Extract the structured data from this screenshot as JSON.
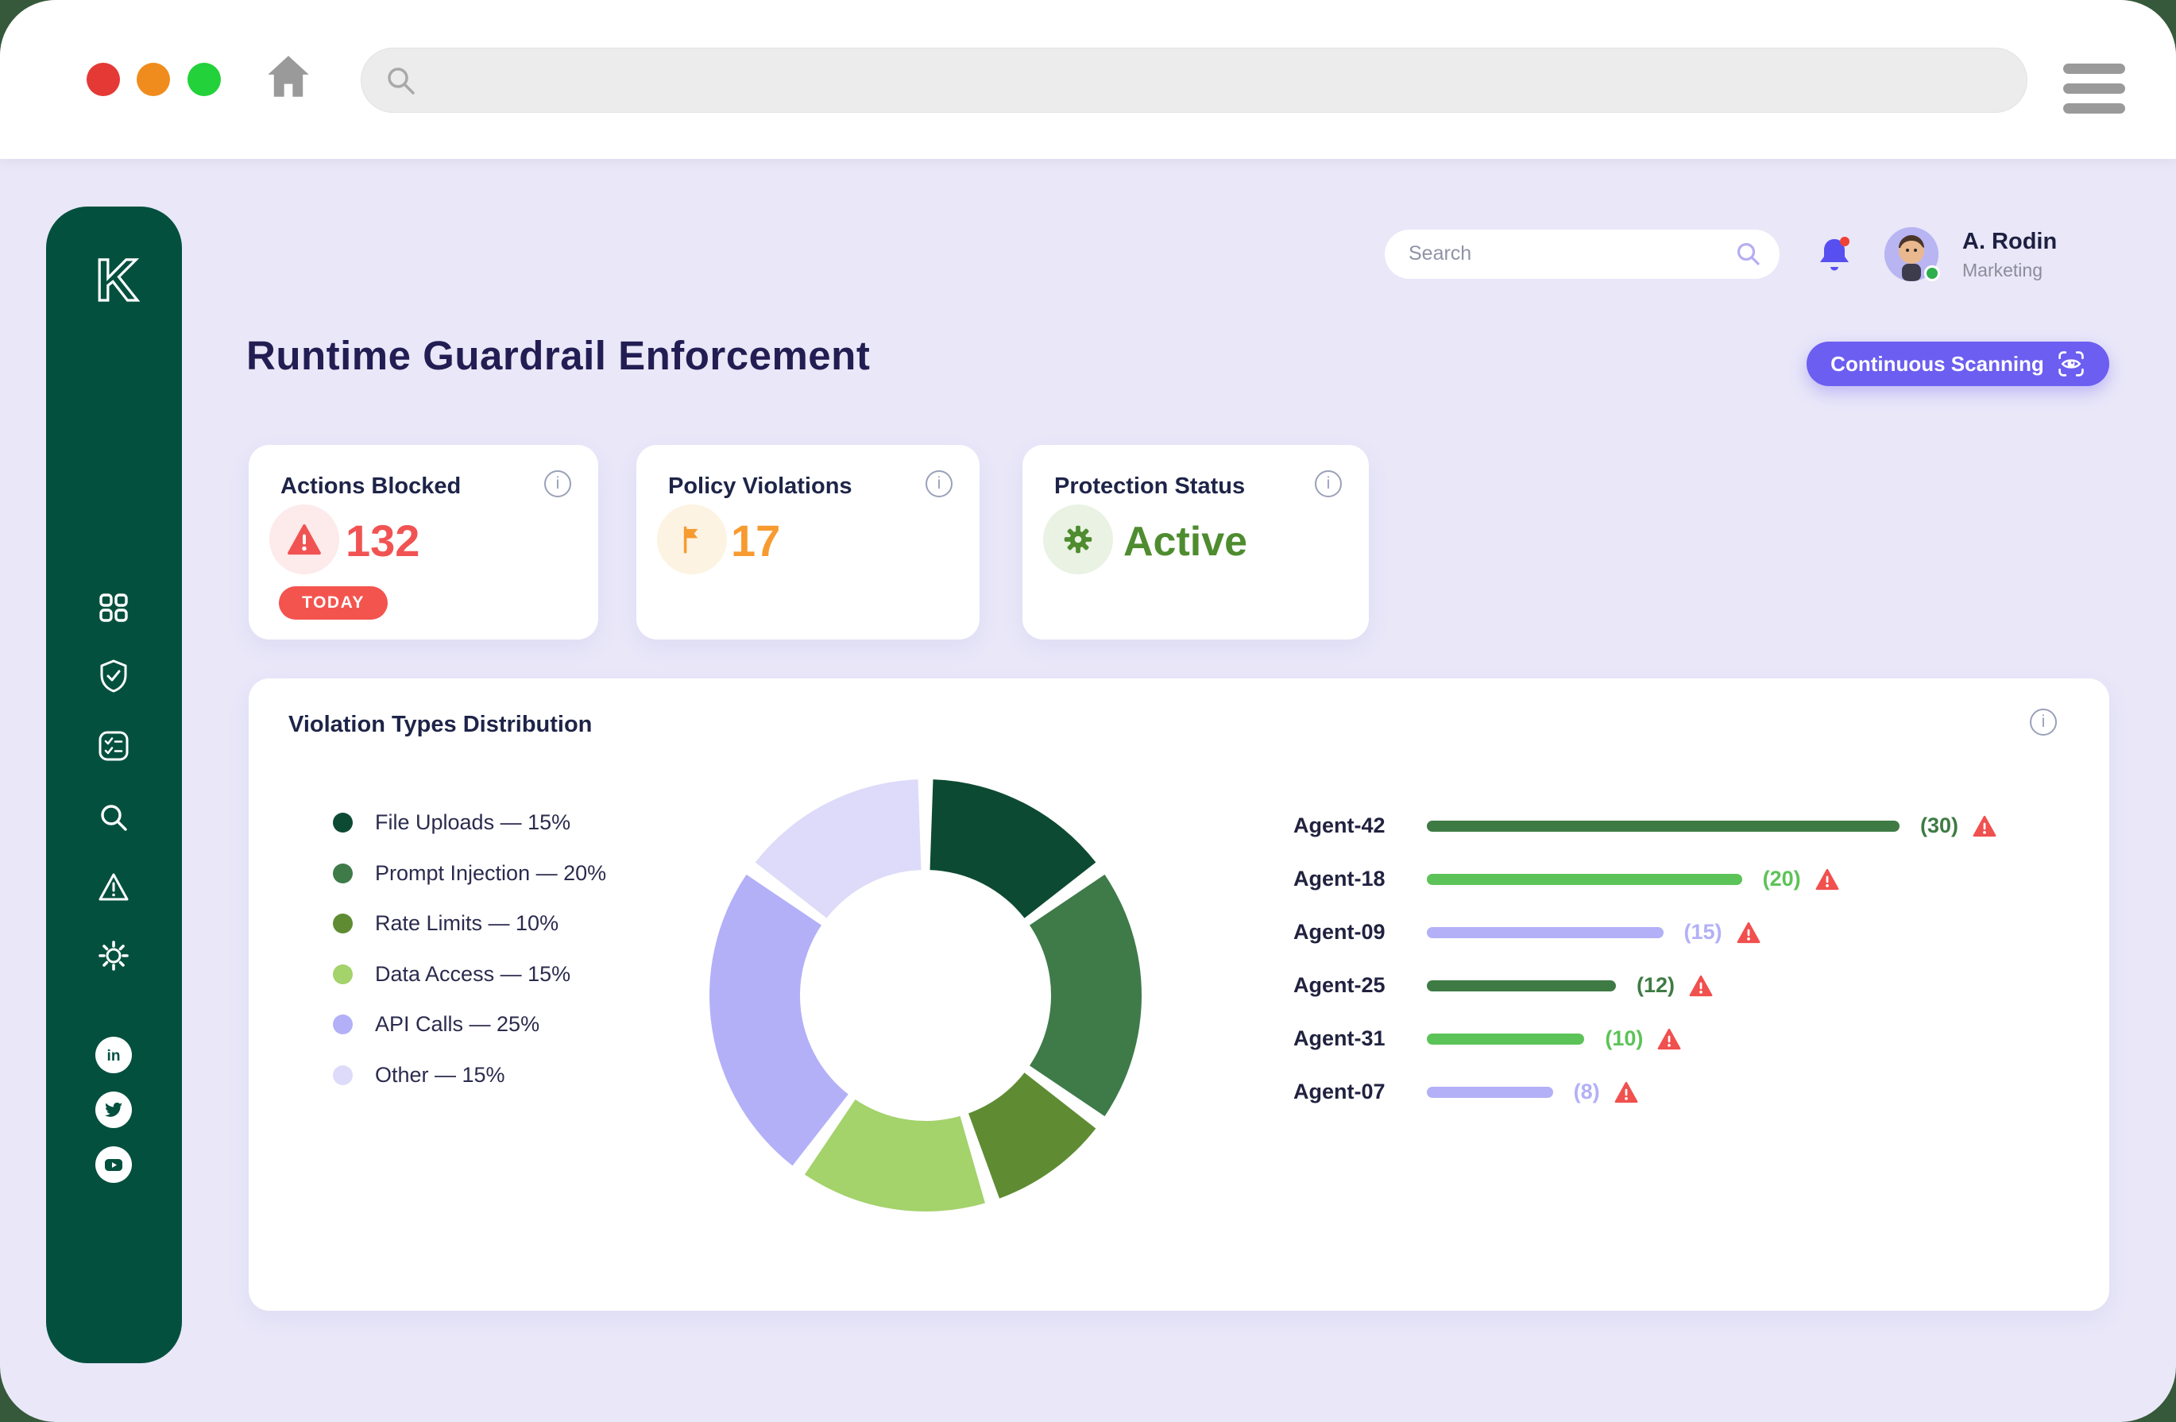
{
  "browser_chrome": {
    "search_value": "",
    "traffic_lights": [
      "close",
      "minimize",
      "maximize"
    ]
  },
  "sidebar": {
    "brand": "K",
    "nav_icons": [
      "dashboard-grid",
      "shield-check",
      "policy-checklist",
      "search",
      "alerts-warning",
      "settings-gear"
    ],
    "social_icons": [
      "linkedin",
      "twitter",
      "youtube"
    ],
    "color": "#04503f"
  },
  "header": {
    "search_placeholder": "Search",
    "user": {
      "name": "A. Rodin",
      "role": "Marketing"
    }
  },
  "page": {
    "title": "Runtime Guardrail Enforcement",
    "scan_button_label": "Continuous Scanning"
  },
  "stat_cards": [
    {
      "title": "Actions Blocked",
      "value": "132",
      "badge": "TODAY",
      "accent": "#f15353"
    },
    {
      "title": "Policy Violations",
      "value": "17",
      "accent": "#f79b31"
    },
    {
      "title": "Protection Status",
      "value": "Active",
      "accent": "#4e8c2f"
    }
  ],
  "distribution_card": {
    "title": "Violation Types Distribution"
  },
  "chart_data": [
    {
      "type": "pie",
      "donut": true,
      "title": "Violation Types Distribution",
      "labels": [
        "File Uploads",
        "Prompt Injection",
        "Rate Limits",
        "Data Access",
        "API Calls",
        "Other"
      ],
      "values": [
        15,
        20,
        10,
        15,
        25,
        15
      ],
      "unit": "%",
      "colors": [
        "#0d4a33",
        "#3e7b49",
        "#5f8c33",
        "#a4d26b",
        "#b3b0f8",
        "#dddbf9"
      ],
      "legend_position": "left",
      "start_angle_deg": -90,
      "direction": "clockwise",
      "slice_gap_deg": 4
    },
    {
      "type": "bar",
      "orientation": "horizontal",
      "categories": [
        "Agent-42",
        "Agent-18",
        "Agent-09",
        "Agent-25",
        "Agent-31",
        "Agent-07"
      ],
      "values": [
        30,
        20,
        15,
        12,
        10,
        8
      ],
      "value_format": "(n)",
      "colors": [
        "#3e7b44",
        "#5cc358",
        "#b3b0f8",
        "#3e7b44",
        "#5cc358",
        "#b3b0f8"
      ],
      "xlim": [
        0,
        30
      ],
      "row_flag_icon": "warning-triangle-red"
    }
  ]
}
